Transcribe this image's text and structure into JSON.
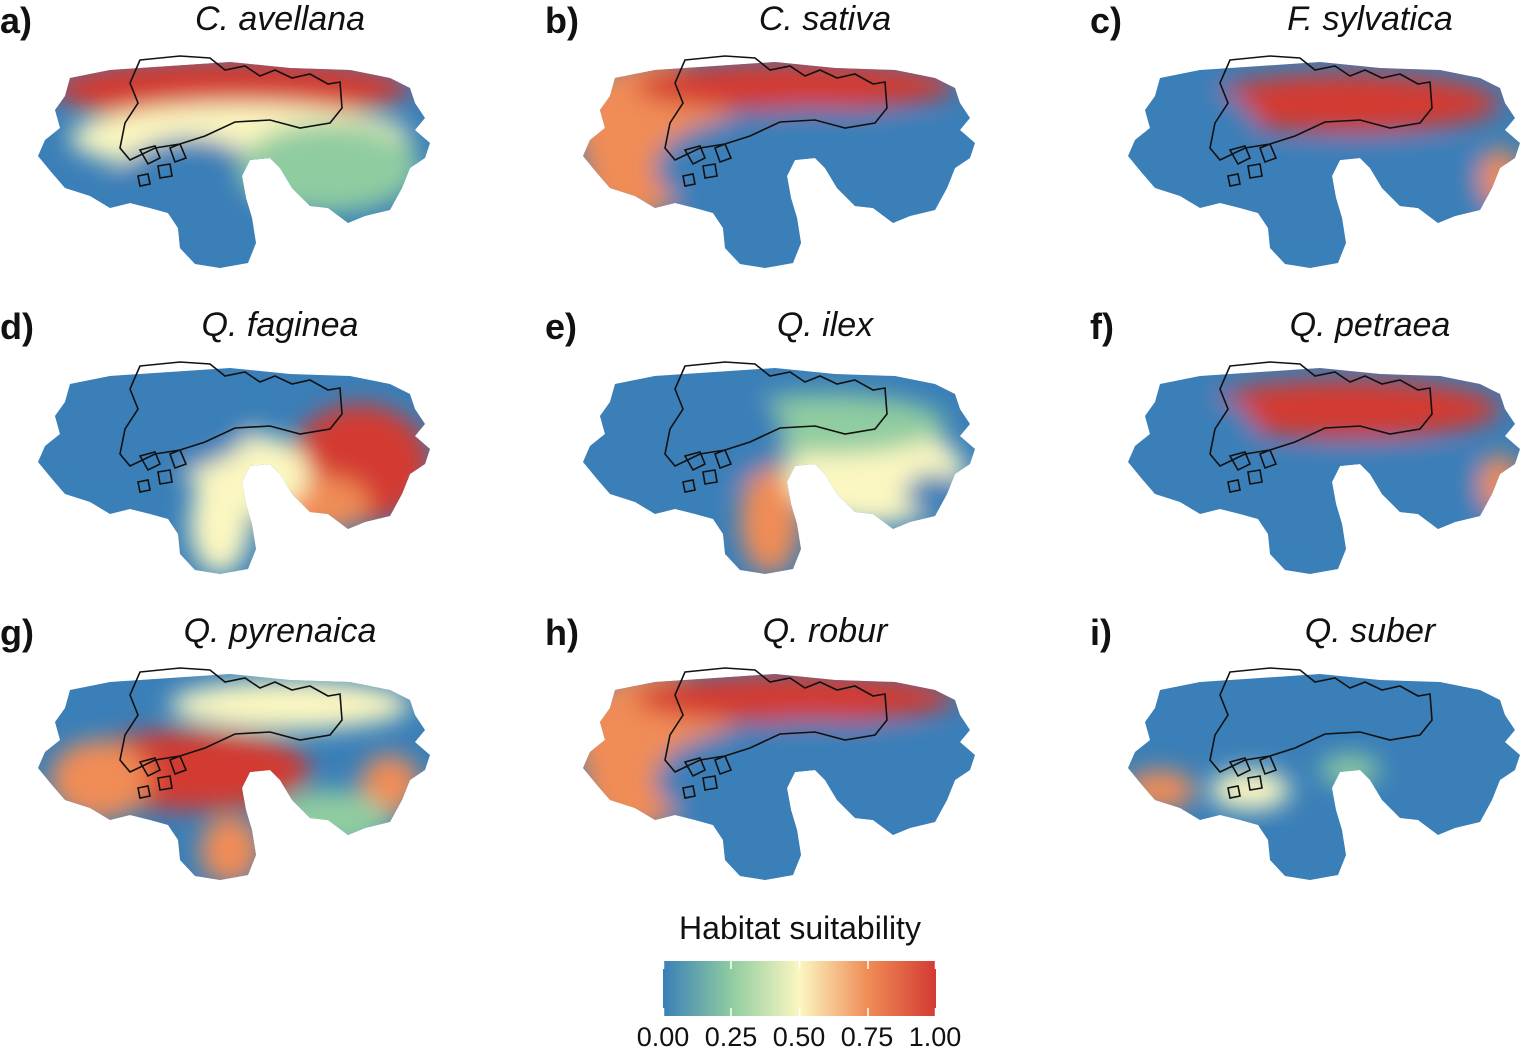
{
  "colors": {
    "low": "#3a7fb8",
    "mid_low": "#8fcca0",
    "mid": "#fbf7c1",
    "mid_high": "#f08c57",
    "high": "#d33a33",
    "outline": "#111111"
  },
  "panels": [
    {
      "letter": "a)",
      "species": "C. avellana",
      "pattern": "north-high"
    },
    {
      "letter": "b)",
      "species": "C. sativa",
      "pattern": "west-north-high"
    },
    {
      "letter": "c)",
      "species": "F. sylvatica",
      "pattern": "mountain-high"
    },
    {
      "letter": "d)",
      "species": "Q. faginea",
      "pattern": "east-high"
    },
    {
      "letter": "e)",
      "species": "Q. ilex",
      "pattern": "south-mid"
    },
    {
      "letter": "f)",
      "species": "Q. petraea",
      "pattern": "mountain-high"
    },
    {
      "letter": "g)",
      "species": "Q. pyrenaica",
      "pattern": "central-high"
    },
    {
      "letter": "h)",
      "species": "Q. robur",
      "pattern": "west-north-high"
    },
    {
      "letter": "i)",
      "species": "Q. suber",
      "pattern": "low"
    }
  ],
  "legend": {
    "title": "Habitat suitability",
    "ticks": [
      "0.00",
      "0.25",
      "0.50",
      "0.75",
      "1.00"
    ],
    "range": [
      0,
      1
    ]
  }
}
